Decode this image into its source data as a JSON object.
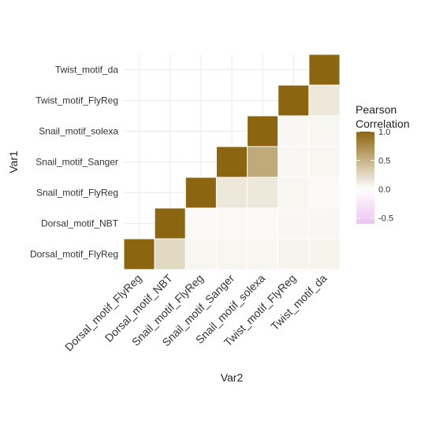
{
  "chart_data": {
    "type": "heatmap",
    "title": "",
    "xlabel": "Var2",
    "ylabel": "Var1",
    "variables": [
      "Dorsal_motif_FlyReg",
      "Dorsal_motif_NBT",
      "Snail_motif_FlyReg",
      "Snail_motif_Sanger",
      "Snail_motif_solexa",
      "Twist_motif_FlyReg",
      "Twist_motif_da"
    ],
    "cells": [
      {
        "x": "Dorsal_motif_FlyReg",
        "y": "Dorsal_motif_FlyReg",
        "value": 1.0
      },
      {
        "x": "Dorsal_motif_NBT",
        "y": "Dorsal_motif_FlyReg",
        "value": 0.25
      },
      {
        "x": "Snail_motif_FlyReg",
        "y": "Dorsal_motif_FlyReg",
        "value": 0.06
      },
      {
        "x": "Snail_motif_Sanger",
        "y": "Dorsal_motif_FlyReg",
        "value": 0.06
      },
      {
        "x": "Snail_motif_solexa",
        "y": "Dorsal_motif_FlyReg",
        "value": 0.06
      },
      {
        "x": "Twist_motif_FlyReg",
        "y": "Dorsal_motif_FlyReg",
        "value": 0.07
      },
      {
        "x": "Twist_motif_da",
        "y": "Dorsal_motif_FlyReg",
        "value": 0.07
      },
      {
        "x": "Dorsal_motif_NBT",
        "y": "Dorsal_motif_NBT",
        "value": 1.0
      },
      {
        "x": "Snail_motif_FlyReg",
        "y": "Dorsal_motif_NBT",
        "value": 0.04
      },
      {
        "x": "Snail_motif_Sanger",
        "y": "Dorsal_motif_NBT",
        "value": 0.04
      },
      {
        "x": "Snail_motif_solexa",
        "y": "Dorsal_motif_NBT",
        "value": 0.04
      },
      {
        "x": "Twist_motif_FlyReg",
        "y": "Dorsal_motif_NBT",
        "value": 0.05
      },
      {
        "x": "Twist_motif_da",
        "y": "Dorsal_motif_NBT",
        "value": 0.05
      },
      {
        "x": "Snail_motif_FlyReg",
        "y": "Snail_motif_FlyReg",
        "value": 1.0
      },
      {
        "x": "Snail_motif_Sanger",
        "y": "Snail_motif_FlyReg",
        "value": 0.15
      },
      {
        "x": "Snail_motif_solexa",
        "y": "Snail_motif_FlyReg",
        "value": 0.15
      },
      {
        "x": "Twist_motif_FlyReg",
        "y": "Snail_motif_FlyReg",
        "value": 0.06
      },
      {
        "x": "Twist_motif_da",
        "y": "Snail_motif_FlyReg",
        "value": 0.04
      },
      {
        "x": "Snail_motif_Sanger",
        "y": "Snail_motif_Sanger",
        "value": 1.0
      },
      {
        "x": "Snail_motif_solexa",
        "y": "Snail_motif_Sanger",
        "value": 0.55
      },
      {
        "x": "Twist_motif_FlyReg",
        "y": "Snail_motif_Sanger",
        "value": 0.05
      },
      {
        "x": "Twist_motif_da",
        "y": "Snail_motif_Sanger",
        "value": 0.06
      },
      {
        "x": "Snail_motif_solexa",
        "y": "Snail_motif_solexa",
        "value": 1.0
      },
      {
        "x": "Twist_motif_FlyReg",
        "y": "Snail_motif_solexa",
        "value": 0.05
      },
      {
        "x": "Twist_motif_da",
        "y": "Snail_motif_solexa",
        "value": 0.06
      },
      {
        "x": "Twist_motif_FlyReg",
        "y": "Twist_motif_FlyReg",
        "value": 1.0
      },
      {
        "x": "Twist_motif_da",
        "y": "Twist_motif_FlyReg",
        "value": 0.15
      },
      {
        "x": "Twist_motif_da",
        "y": "Twist_motif_da",
        "value": 1.0
      }
    ],
    "legend": {
      "title": [
        "Pearson",
        "Correlation"
      ],
      "ticks": [
        1.0,
        0.5,
        0.0,
        -0.5
      ],
      "tick_labels": [
        "1.0",
        "0.5",
        "0.0",
        "-0.5"
      ],
      "range": [
        -0.6,
        1.0
      ],
      "placement": "right"
    },
    "colors": {
      "high": "#8c6510",
      "mid": "#ffffff",
      "low": "#e39ae9"
    },
    "grid": true
  }
}
